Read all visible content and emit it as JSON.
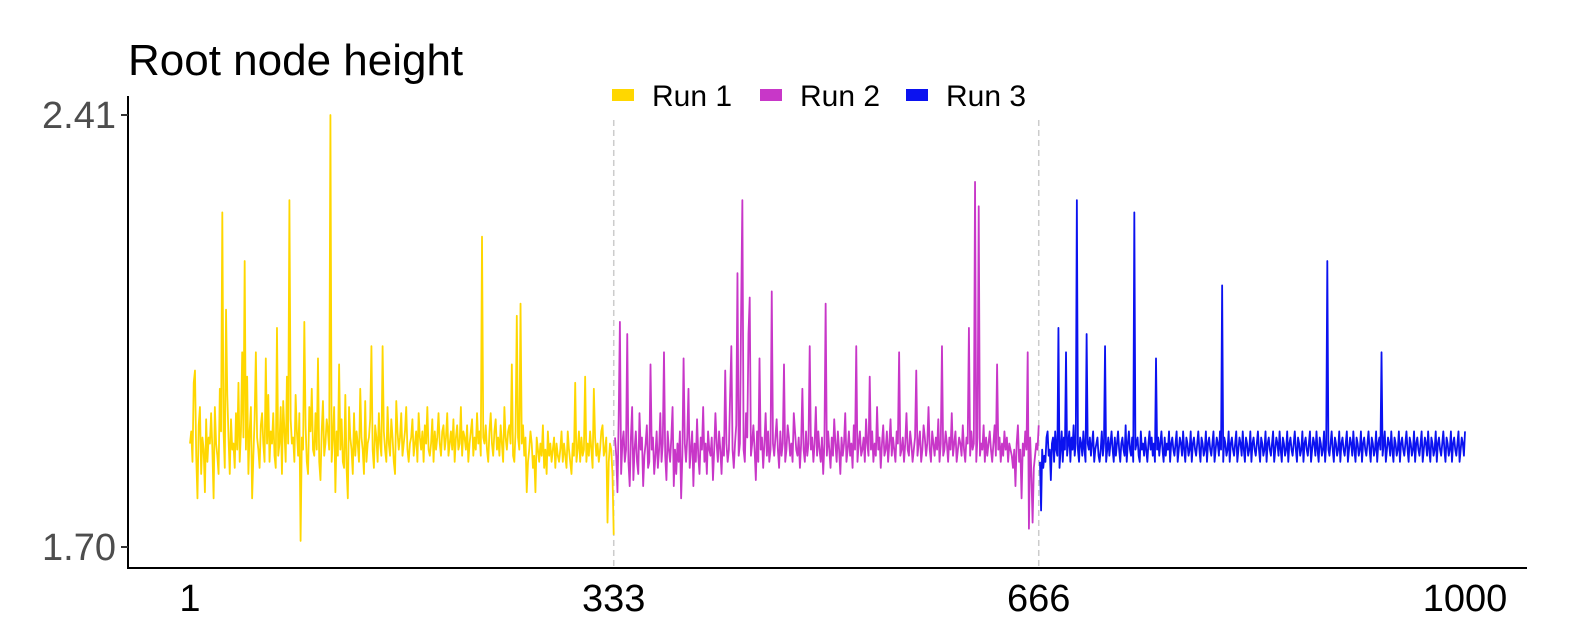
{
  "chart_data": {
    "type": "line",
    "title": "Root node height",
    "xlabel": "",
    "ylabel": "",
    "xlim": [
      1,
      1000
    ],
    "ylim": [
      1.7,
      2.41
    ],
    "x_ticks": [
      "1",
      "333",
      "666",
      "1000"
    ],
    "y_ticks": [
      "1.70",
      "2.41"
    ],
    "run_boundaries": [
      333,
      666
    ],
    "grid": false,
    "legend": {
      "placement": "top",
      "entries": [
        "Run 1",
        "Run 2",
        "Run 3"
      ]
    },
    "series": [
      {
        "name": "Run 1",
        "color": "#FFD700",
        "x_start": 1,
        "x_end": 333,
        "values": [
          1.87,
          1.89,
          1.84,
          1.97,
          1.99,
          1.85,
          1.78,
          1.9,
          1.93,
          1.82,
          1.88,
          1.86,
          1.79,
          1.91,
          1.84,
          1.88,
          1.87,
          1.92,
          1.86,
          1.78,
          1.93,
          1.87,
          1.85,
          1.82,
          1.96,
          1.89,
          2.25,
          1.89,
          1.83,
          2.09,
          1.95,
          1.88,
          1.82,
          1.91,
          1.86,
          1.87,
          1.83,
          1.92,
          1.86,
          1.97,
          1.84,
          1.89,
          2.02,
          1.88,
          2.17,
          1.86,
          1.98,
          1.82,
          1.89,
          1.93,
          1.78,
          1.85,
          1.91,
          2.02,
          1.88,
          1.86,
          1.83,
          1.9,
          1.92,
          1.87,
          1.84,
          2.01,
          1.87,
          1.95,
          1.84,
          1.89,
          1.87,
          1.92,
          1.85,
          1.83,
          2.06,
          1.85,
          1.87,
          1.93,
          1.82,
          1.94,
          1.89,
          1.84,
          1.98,
          1.87,
          2.27,
          1.91,
          1.87,
          1.88,
          1.84,
          1.95,
          1.89,
          1.85,
          1.92,
          1.71,
          1.88,
          1.86,
          2.07,
          1.9,
          1.84,
          1.82,
          1.93,
          1.89,
          1.96,
          1.86,
          1.85,
          1.92,
          1.86,
          2.01,
          1.84,
          1.81,
          1.89,
          1.94,
          1.85,
          1.87,
          1.91,
          1.89,
          1.86,
          2.41,
          1.84,
          1.88,
          1.93,
          1.79,
          1.89,
          1.85,
          2.0,
          1.86,
          1.91,
          1.84,
          1.83,
          1.95,
          1.83,
          1.78,
          1.93,
          1.88,
          1.86,
          1.82,
          1.92,
          1.85,
          1.89,
          1.87,
          1.84,
          1.96,
          1.88,
          1.86,
          1.82,
          1.94,
          1.84,
          1.87,
          1.88,
          1.91,
          2.03,
          1.86,
          1.83,
          1.9,
          1.88,
          1.84,
          1.92,
          1.87,
          1.85,
          2.03,
          1.89,
          1.86,
          1.84,
          1.93,
          1.87,
          1.85,
          1.91,
          1.88,
          1.84,
          1.82,
          1.94,
          1.89,
          1.86,
          1.88,
          1.92,
          1.85,
          1.87,
          1.89,
          1.93,
          1.86,
          1.84,
          1.87,
          1.88,
          1.91,
          1.85,
          1.87,
          1.89,
          1.84,
          1.92,
          1.88,
          1.86,
          1.89,
          1.84,
          1.9,
          1.87,
          1.93,
          1.86,
          1.85,
          1.87,
          1.91,
          1.84,
          1.89,
          1.86,
          1.88,
          1.92,
          1.87,
          1.85,
          1.89,
          1.9,
          1.86,
          1.88,
          1.92,
          1.85,
          1.87,
          1.89,
          1.86,
          1.91,
          1.84,
          1.88,
          1.9,
          1.86,
          1.87,
          1.93,
          1.85,
          1.89,
          1.88,
          1.86,
          1.9,
          1.84,
          1.87,
          1.89,
          1.91,
          1.85,
          1.88,
          1.86,
          1.92,
          1.87,
          1.89,
          1.85,
          2.21,
          1.88,
          1.87,
          1.9,
          1.86,
          1.84,
          1.89,
          1.92,
          1.87,
          1.85,
          1.89,
          1.91,
          1.86,
          1.88,
          1.85,
          1.9,
          1.87,
          1.84,
          1.93,
          1.88,
          1.86,
          1.89,
          1.9,
          1.87,
          2.0,
          1.85,
          1.84,
          1.89,
          2.08,
          1.88,
          1.86,
          2.1,
          1.87,
          1.9,
          1.85,
          1.88,
          1.79,
          1.84,
          1.86,
          1.89,
          1.87,
          1.83,
          1.85,
          1.79,
          1.88,
          1.86,
          1.84,
          1.87,
          1.85,
          1.9,
          1.83,
          1.86,
          1.82,
          1.89,
          1.85,
          1.87,
          1.84,
          1.86,
          1.88,
          1.83,
          1.87,
          1.85,
          1.84,
          1.86,
          1.89,
          1.84,
          1.87,
          1.85,
          1.83,
          1.89,
          1.86,
          1.84,
          1.82,
          1.87,
          1.85,
          1.97,
          1.84,
          1.86,
          1.89,
          1.84,
          1.88,
          1.85,
          1.86,
          1.98,
          1.84,
          1.87,
          1.85,
          1.89,
          1.86,
          1.83,
          1.96,
          1.88,
          1.85,
          1.87,
          1.84,
          1.86,
          1.89,
          1.9,
          1.85,
          1.86,
          1.88,
          1.74,
          1.84,
          1.87,
          1.86,
          1.82,
          1.72
        ]
      },
      {
        "name": "Run 2",
        "color": "#C837C8",
        "x_start": 334,
        "x_end": 666,
        "values": [
          1.88,
          1.85,
          1.79,
          1.91,
          2.07,
          1.82,
          1.87,
          1.89,
          1.84,
          1.86,
          2.05,
          1.84,
          1.8,
          1.88,
          1.93,
          1.81,
          1.86,
          1.89,
          1.84,
          1.82,
          1.92,
          1.86,
          1.88,
          1.8,
          1.85,
          1.87,
          1.9,
          1.83,
          1.84,
          2.0,
          1.86,
          1.88,
          1.82,
          1.85,
          1.89,
          1.83,
          1.86,
          1.92,
          1.84,
          1.87,
          2.02,
          1.85,
          1.81,
          1.89,
          1.86,
          1.84,
          1.88,
          1.93,
          1.8,
          1.86,
          1.82,
          1.87,
          1.84,
          1.89,
          1.78,
          1.85,
          2.01,
          1.87,
          1.84,
          1.88,
          1.96,
          1.83,
          1.86,
          1.89,
          1.8,
          1.87,
          1.84,
          1.91,
          1.85,
          1.82,
          1.88,
          1.86,
          1.93,
          1.84,
          1.87,
          1.82,
          1.89,
          1.86,
          1.85,
          1.88,
          1.81,
          1.86,
          1.92,
          1.87,
          1.84,
          1.89,
          1.86,
          1.82,
          1.88,
          1.85,
          1.99,
          1.87,
          1.84,
          1.86,
          1.95,
          2.03,
          1.86,
          1.83,
          1.87,
          1.9,
          2.15,
          1.85,
          1.87,
          2.09,
          2.27,
          1.86,
          1.84,
          1.92,
          1.88,
          2.05,
          2.11,
          1.85,
          1.87,
          1.9,
          1.86,
          1.81,
          1.89,
          1.84,
          2.01,
          1.86,
          1.88,
          1.83,
          1.87,
          1.92,
          1.85,
          1.89,
          1.84,
          1.86,
          2.12,
          1.87,
          1.85,
          1.88,
          1.91,
          1.86,
          1.83,
          1.89,
          1.85,
          1.87,
          2.0,
          1.84,
          1.86,
          1.9,
          1.88,
          1.85,
          1.87,
          1.84,
          1.92,
          1.89,
          1.86,
          1.85,
          1.88,
          1.83,
          1.87,
          1.96,
          1.86,
          1.84,
          1.89,
          1.85,
          1.87,
          2.03,
          1.86,
          1.88,
          1.84,
          1.87,
          1.93,
          1.85,
          1.89,
          1.86,
          1.84,
          1.88,
          1.82,
          1.87,
          2.1,
          1.85,
          1.89,
          1.86,
          1.83,
          1.88,
          1.85,
          1.91,
          1.87,
          1.84,
          1.89,
          1.86,
          1.82,
          1.88,
          1.85,
          1.87,
          1.92,
          1.84,
          1.86,
          1.89,
          1.85,
          1.87,
          1.83,
          1.9,
          1.86,
          2.03,
          1.84,
          1.87,
          1.89,
          1.85,
          1.86,
          1.88,
          1.84,
          1.91,
          1.87,
          1.85,
          1.98,
          1.86,
          1.89,
          1.84,
          1.87,
          1.85,
          1.93,
          1.86,
          1.88,
          1.83,
          1.87,
          1.9,
          1.85,
          1.86,
          1.89,
          1.84,
          1.87,
          1.91,
          1.85,
          1.88,
          1.86,
          1.84,
          1.89,
          1.87,
          2.02,
          1.85,
          1.86,
          1.88,
          1.84,
          1.87,
          1.92,
          1.86,
          1.85,
          1.89,
          1.87,
          1.84,
          1.86,
          1.88,
          1.99,
          1.85,
          1.87,
          1.89,
          1.84,
          1.86,
          1.9,
          1.88,
          1.85,
          1.87,
          1.93,
          1.86,
          1.84,
          1.89,
          1.87,
          1.85,
          1.88,
          1.86,
          1.91,
          1.84,
          1.87,
          2.03,
          1.85,
          1.86,
          1.89,
          1.87,
          1.84,
          1.88,
          1.86,
          1.92,
          1.85,
          1.87,
          1.89,
          1.84,
          1.86,
          1.88,
          1.87,
          1.85,
          1.9,
          1.86,
          1.84,
          1.88,
          1.87,
          2.06,
          1.85,
          1.89,
          1.86,
          1.87,
          2.3,
          1.84,
          1.88,
          2.26,
          1.85,
          1.87,
          1.86,
          1.9,
          1.84,
          1.88,
          1.85,
          1.87,
          1.89,
          1.86,
          1.84,
          1.87,
          1.9,
          1.85,
          2.0,
          1.86,
          1.88,
          1.84,
          1.87,
          1.85,
          1.89,
          1.86,
          1.88,
          1.84,
          1.87,
          1.86,
          1.85,
          1.83,
          1.86,
          1.8,
          1.87,
          1.9,
          1.84,
          1.86,
          1.78,
          1.87,
          1.85,
          1.89,
          1.86,
          2.02,
          1.73,
          1.88,
          1.82,
          1.74,
          1.83,
          1.85,
          1.87,
          1.86,
          1.9
        ]
      },
      {
        "name": "Run 3",
        "color": "#0B12F0",
        "x_start": 667,
        "x_end": 1000,
        "values": [
          1.84,
          1.76,
          1.86,
          1.83,
          1.85,
          1.84,
          1.88,
          1.89,
          1.85,
          1.86,
          1.81,
          1.87,
          1.88,
          1.84,
          1.89,
          1.86,
          1.85,
          2.06,
          1.83,
          1.86,
          1.89,
          1.84,
          1.88,
          1.86,
          2.02,
          1.85,
          1.87,
          1.89,
          1.84,
          1.88,
          1.86,
          1.9,
          1.85,
          1.87,
          2.27,
          1.86,
          1.84,
          1.88,
          1.87,
          1.85,
          1.89,
          1.86,
          1.84,
          2.05,
          1.87,
          1.86,
          1.88,
          1.85,
          1.87,
          1.89,
          1.84,
          1.86,
          1.87,
          1.88,
          1.85,
          1.84,
          1.86,
          1.89,
          1.85,
          1.87,
          2.03,
          1.84,
          1.86,
          1.88,
          1.85,
          1.87,
          1.89,
          1.86,
          1.84,
          1.88,
          1.85,
          1.87,
          1.89,
          1.86,
          1.84,
          1.87,
          1.88,
          1.86,
          1.85,
          1.9,
          1.84,
          1.87,
          1.89,
          1.86,
          1.85,
          1.88,
          1.84,
          2.25,
          1.86,
          1.87,
          1.88,
          1.85,
          1.84,
          1.89,
          1.86,
          1.87,
          1.85,
          1.88,
          1.86,
          1.84,
          1.87,
          1.89,
          1.86,
          1.88,
          1.85,
          1.87,
          1.84,
          2.01,
          1.86,
          1.88,
          1.85,
          1.87,
          1.89,
          1.86,
          1.84,
          1.88,
          1.85,
          1.87,
          1.86,
          1.89,
          1.84,
          1.87,
          1.88,
          1.86,
          1.85,
          1.87,
          1.89,
          1.84,
          1.86,
          1.88,
          1.87,
          1.85,
          1.89,
          1.86,
          1.84,
          1.88,
          1.87,
          1.85,
          1.86,
          1.89,
          1.84,
          1.87,
          1.88,
          1.86,
          1.85,
          1.87,
          1.89,
          1.86,
          1.84,
          1.88,
          1.87,
          1.85,
          1.86,
          1.89,
          1.84,
          1.87,
          1.88,
          1.86,
          1.85,
          1.87,
          1.89,
          1.84,
          1.86,
          1.88,
          1.87,
          1.85,
          1.89,
          1.86,
          2.13,
          1.84,
          1.88,
          1.87,
          1.85,
          1.86,
          1.89,
          1.84,
          1.87,
          1.88,
          1.86,
          1.85,
          1.87,
          1.89,
          1.84,
          1.86,
          1.88,
          1.87,
          1.85,
          1.89,
          1.86,
          1.84,
          1.88,
          1.87,
          1.85,
          1.86,
          1.89,
          1.84,
          1.87,
          1.88,
          1.86,
          1.85,
          1.87,
          1.89,
          1.86,
          1.84,
          1.88,
          1.87,
          1.85,
          1.86,
          1.89,
          1.84,
          1.87,
          1.88,
          1.86,
          1.85,
          1.87,
          1.89,
          1.84,
          1.86,
          1.88,
          1.87,
          1.85,
          1.89,
          1.86,
          1.84,
          1.88,
          1.87,
          1.85,
          1.86,
          1.89,
          1.84,
          1.87,
          1.88,
          1.86,
          1.85,
          1.87,
          1.89,
          1.86,
          1.84,
          1.88,
          1.87,
          1.85,
          1.86,
          1.89,
          1.84,
          1.87,
          1.88,
          1.86,
          1.85,
          1.87,
          1.89,
          1.84,
          1.86,
          1.88,
          1.87,
          1.85,
          1.89,
          1.86,
          1.84,
          1.88,
          1.87,
          1.85,
          1.86,
          1.89,
          1.84,
          1.87,
          2.17,
          1.86,
          1.85,
          1.87,
          1.89,
          1.86,
          1.84,
          1.88,
          1.87,
          1.85,
          1.86,
          1.89,
          1.84,
          1.87,
          1.88,
          1.86,
          1.85,
          1.87,
          1.89,
          1.84,
          1.86,
          1.88,
          1.87,
          1.85,
          1.89,
          1.86,
          1.84,
          1.88,
          1.87,
          1.85,
          1.86,
          1.89,
          1.84,
          1.87,
          1.88,
          1.86,
          1.85,
          1.87,
          1.89,
          1.86,
          1.84,
          1.88,
          1.87,
          1.85,
          1.86,
          1.89,
          1.84,
          1.87,
          1.88,
          1.86,
          2.02,
          1.85,
          1.87,
          1.89,
          1.84,
          1.86,
          1.88,
          1.87,
          1.85,
          1.89,
          1.86,
          1.84,
          1.88,
          1.87,
          1.85,
          1.86,
          1.89,
          1.84,
          1.87,
          1.88,
          1.86,
          1.85,
          1.87,
          1.89,
          1.86,
          1.84,
          1.88,
          1.87,
          1.85,
          1.86,
          1.89,
          1.84,
          1.87,
          1.88,
          1.86,
          1.85,
          1.87,
          1.89,
          1.84,
          1.86,
          1.88,
          1.87,
          1.85,
          1.89,
          1.86,
          1.84,
          1.88,
          1.87,
          1.85,
          1.86,
          1.89,
          1.84,
          1.87,
          1.88,
          1.86,
          1.85,
          1.87,
          1.89,
          1.86,
          1.84,
          1.88,
          1.87,
          1.85,
          1.86,
          1.89,
          1.84,
          1.87,
          1.88,
          1.86,
          1.85,
          1.87,
          1.89,
          1.84,
          1.86,
          1.88,
          1.87,
          1.85,
          1.89
        ]
      }
    ]
  }
}
